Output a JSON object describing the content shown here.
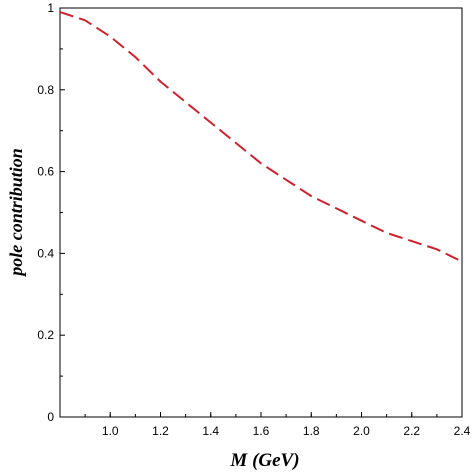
{
  "chart_data": {
    "type": "line",
    "title": "",
    "xlabel": "M (GeV)",
    "ylabel": "pole contribution",
    "xlim": [
      0.8,
      2.4
    ],
    "ylim": [
      0,
      1
    ],
    "xticks": [
      1.0,
      1.2,
      1.4,
      1.6,
      1.8,
      2.0,
      2.2,
      2.4
    ],
    "xtick_labels": [
      "1.0",
      "1.2",
      "1.4",
      "1.6",
      "1.8",
      "2.0",
      "2.2",
      "2.4"
    ],
    "yticks": [
      0,
      0.2,
      0.4,
      0.6,
      0.8,
      1
    ],
    "ytick_labels": [
      "0",
      "0.2",
      "0.4",
      "0.6",
      "0.8",
      "1"
    ],
    "grid": false,
    "series": [
      {
        "color": "#d0202a",
        "line_style": "dashed",
        "x": [
          0.8,
          0.9,
          1.0,
          1.1,
          1.2,
          1.3,
          1.4,
          1.5,
          1.6,
          1.7,
          1.8,
          1.9,
          2.0,
          2.1,
          2.2,
          2.3,
          2.4
        ],
        "y": [
          0.99,
          0.97,
          0.93,
          0.88,
          0.82,
          0.77,
          0.72,
          0.67,
          0.62,
          0.58,
          0.54,
          0.51,
          0.48,
          0.45,
          0.43,
          0.41,
          0.38
        ]
      }
    ]
  }
}
